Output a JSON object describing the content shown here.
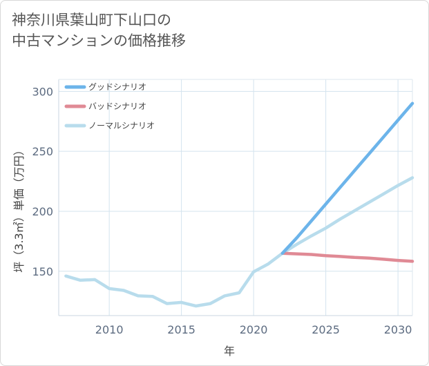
{
  "title_lines": [
    "神奈川県葉山町下山口の",
    "中古マンションの価格推移"
  ],
  "chart_data": {
    "type": "line",
    "xlabel": "年",
    "ylabel": "坪（3.3㎡）単価（万円）",
    "xlim": [
      2006.5,
      2031
    ],
    "ylim": [
      113,
      310
    ],
    "x_ticks": [
      2010,
      2015,
      2020,
      2025,
      2030
    ],
    "y_ticks": [
      150,
      200,
      250,
      300
    ],
    "grid": true,
    "legend_position": "top-left",
    "series": [
      {
        "name": "グッドシナリオ",
        "color": "#6cb4ea",
        "x": [
          2022,
          2023,
          2024,
          2025,
          2026,
          2027,
          2028,
          2029,
          2030,
          2031
        ],
        "y": [
          165,
          178,
          192,
          206,
          220,
          234,
          248,
          262,
          276,
          290
        ]
      },
      {
        "name": "バッドシナリオ",
        "color": "#e08a95",
        "x": [
          2022,
          2023,
          2024,
          2025,
          2026,
          2027,
          2028,
          2029,
          2030,
          2031
        ],
        "y": [
          165,
          164.5,
          164,
          163,
          162.3,
          161.5,
          161,
          160,
          159,
          158.3
        ]
      },
      {
        "name": "ノーマルシナリオ",
        "color": "#b8dcec",
        "x": [
          2007,
          2008,
          2009,
          2010,
          2011,
          2012,
          2013,
          2014,
          2015,
          2016,
          2017,
          2018,
          2019,
          2020,
          2021,
          2022,
          2023,
          2024,
          2025,
          2026,
          2027,
          2028,
          2029,
          2030,
          2031
        ],
        "y": [
          146,
          142.5,
          143,
          135.5,
          134,
          129.5,
          129,
          123,
          124,
          121,
          123,
          129.5,
          132,
          149.5,
          156,
          165,
          172.5,
          179.5,
          186,
          193.5,
          200.5,
          207.5,
          214.5,
          221.5,
          228
        ]
      }
    ]
  }
}
